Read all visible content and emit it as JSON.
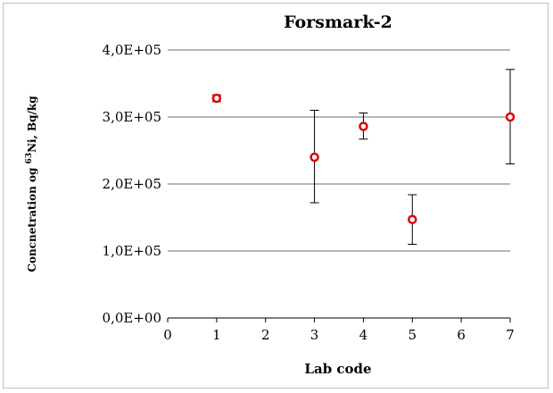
{
  "chart_data": {
    "type": "scatter",
    "title": "Forsmark-2",
    "xlabel": "Lab code",
    "ylabel": {
      "prefix": "Concnetration og ",
      "superscript": "63",
      "suffix": "Ni, Bq/kg"
    },
    "xlim": [
      0,
      7
    ],
    "ylim": [
      0,
      400000
    ],
    "x_ticks": [
      "0",
      "1",
      "2",
      "3",
      "4",
      "5",
      "6",
      "7"
    ],
    "x_tick_values": [
      0,
      1,
      2,
      3,
      4,
      5,
      6,
      7
    ],
    "y_ticks": [
      "0,0E+00",
      "1,0E+05",
      "2,0E+05",
      "3,0E+05",
      "4,0E+05"
    ],
    "y_tick_values": [
      0,
      100000,
      200000,
      300000,
      400000
    ],
    "grid": "horizontal",
    "legend": "none",
    "marker_color": "#e00000",
    "points": [
      {
        "x": 1,
        "y": 328000,
        "err_low": 323000,
        "err_high": 333000
      },
      {
        "x": 3,
        "y": 240000,
        "err_low": 172000,
        "err_high": 310000
      },
      {
        "x": 4,
        "y": 286000,
        "err_low": 267000,
        "err_high": 306000
      },
      {
        "x": 5,
        "y": 147000,
        "err_low": 110000,
        "err_high": 184000
      },
      {
        "x": 7,
        "y": 300000,
        "err_low": 230000,
        "err_high": 371000
      }
    ]
  }
}
